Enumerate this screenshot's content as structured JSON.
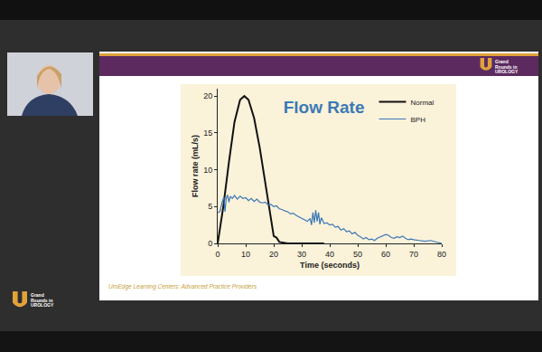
{
  "chart_data": {
    "type": "line",
    "title": "Flow Rate",
    "x_label": "Time (seconds)",
    "y_label": "Flow rate (mL/s)",
    "xlim": [
      0,
      80
    ],
    "ylim": [
      0,
      21
    ],
    "xticks": [
      0,
      10,
      20,
      30,
      40,
      50,
      60,
      70,
      80
    ],
    "yticks": [
      0,
      5,
      10,
      15,
      20
    ],
    "grid": false,
    "legend": "top-right",
    "series": [
      {
        "name": "Normal",
        "color": "#111111",
        "x": [
          0,
          2,
          4,
          6,
          8,
          9.5,
          11,
          13,
          15,
          17,
          19,
          20,
          21,
          22,
          25,
          30,
          38
        ],
        "values": [
          0,
          5,
          11,
          16.5,
          19.5,
          20,
          19.5,
          17,
          13,
          8,
          3,
          1,
          0.8,
          0.2,
          0,
          0,
          0
        ]
      },
      {
        "name": "BPH",
        "color": "#3b78b5",
        "x": [
          0,
          0.8,
          1.5,
          2.2,
          2.6,
          3,
          3.5,
          4,
          4.5,
          5.2,
          6,
          7,
          8,
          9,
          10,
          11,
          12,
          13,
          14,
          15,
          16,
          17,
          18,
          19,
          20,
          21,
          22,
          23,
          24,
          25,
          26,
          27,
          28,
          29,
          30,
          31,
          32,
          33,
          33.5,
          34,
          34.5,
          35,
          35.5,
          36,
          36.5,
          37,
          38,
          39,
          40,
          41,
          42,
          43,
          44,
          45,
          46,
          47,
          48,
          49,
          50,
          51,
          52,
          53,
          54,
          55,
          56,
          57,
          58,
          59,
          60,
          61,
          62,
          63,
          64,
          65,
          66,
          67,
          68,
          69,
          70,
          72,
          74,
          76,
          78,
          79,
          80
        ],
        "values": [
          4.2,
          4.3,
          5.5,
          6.3,
          4.3,
          6.0,
          6.6,
          5.6,
          6.4,
          6.1,
          6.5,
          6.0,
          6.4,
          6.1,
          6.2,
          5.8,
          6.1,
          5.7,
          6.0,
          5.6,
          5.5,
          5.6,
          5.2,
          5.3,
          5.0,
          5.1,
          4.7,
          4.6,
          4.4,
          4.3,
          4.0,
          4.1,
          3.8,
          3.6,
          3.3,
          3.2,
          3.0,
          3.4,
          2.5,
          4.2,
          2.8,
          4.5,
          3.0,
          4.2,
          2.6,
          3.5,
          2.7,
          2.8,
          2.5,
          2.6,
          2.2,
          2.3,
          1.8,
          2.0,
          1.6,
          1.7,
          1.3,
          1.5,
          1.1,
          0.9,
          0.6,
          0.8,
          0.5,
          0.6,
          0.4,
          0.7,
          0.9,
          1.0,
          1.2,
          1.1,
          0.8,
          0.7,
          0.9,
          0.8,
          1.0,
          0.7,
          0.5,
          0.6,
          0.5,
          0.4,
          0.3,
          0.4,
          0.2,
          0.1,
          0
        ]
      }
    ]
  },
  "slide": {
    "footer": "UroEdge Learning Centers: Advanced Practice Providers",
    "logo": "Grand Rounds in UROLOGY"
  }
}
